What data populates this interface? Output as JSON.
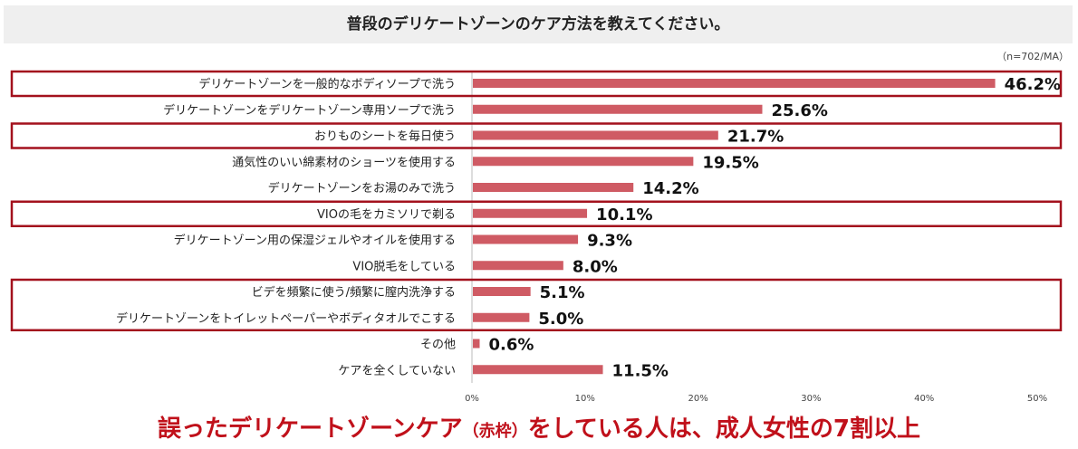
{
  "title": "普段のデリケートゾーンのケア方法を教えてください。",
  "sample_note": "（n=702/MA）",
  "footer": {
    "part1": "誤ったデリケートゾーンケア",
    "paren": "（赤枠）",
    "part2": "をしている人は、成人女性の7割以上"
  },
  "colors": {
    "bar": "#cf5b64",
    "highlight_box": "#a3111d",
    "footer_text": "#c0101a"
  },
  "chart_data": {
    "type": "bar",
    "orientation": "horizontal",
    "categories": [
      "デリケートゾーンを一般的なボディソープで洗う",
      "デリケートゾーンをデリケートゾーン専用ソープで洗う",
      "おりものシートを毎日使う",
      "通気性のいい綿素材のショーツを使用する",
      "デリケートゾーンをお湯のみで洗う",
      "VIOの毛をカミソリで剃る",
      "デリケートゾーン用の保湿ジェルやオイルを使用する",
      "VIO脱毛をしている",
      "ビデを頻繁に使う/頻繁に膣内洗浄する",
      "デリケートゾーンをトイレットペーパーやボディタオルでこする",
      "その他",
      "ケアを全くしていない"
    ],
    "values": [
      46.2,
      25.6,
      21.7,
      19.5,
      14.2,
      10.1,
      9.3,
      8.0,
      5.1,
      5.0,
      0.6,
      11.5
    ],
    "value_labels": [
      "46.2%",
      "25.6%",
      "21.7%",
      "19.5%",
      "14.2%",
      "10.1%",
      "9.3%",
      "8.0%",
      "5.1%",
      "5.0%",
      "0.6%",
      "11.5%"
    ],
    "xticks": [
      "0%",
      "10%",
      "20%",
      "30%",
      "40%",
      "50%"
    ],
    "xlim": [
      0,
      50
    ],
    "highlighted_groups": [
      [
        0
      ],
      [
        2
      ],
      [
        5
      ],
      [
        8,
        9
      ]
    ]
  }
}
